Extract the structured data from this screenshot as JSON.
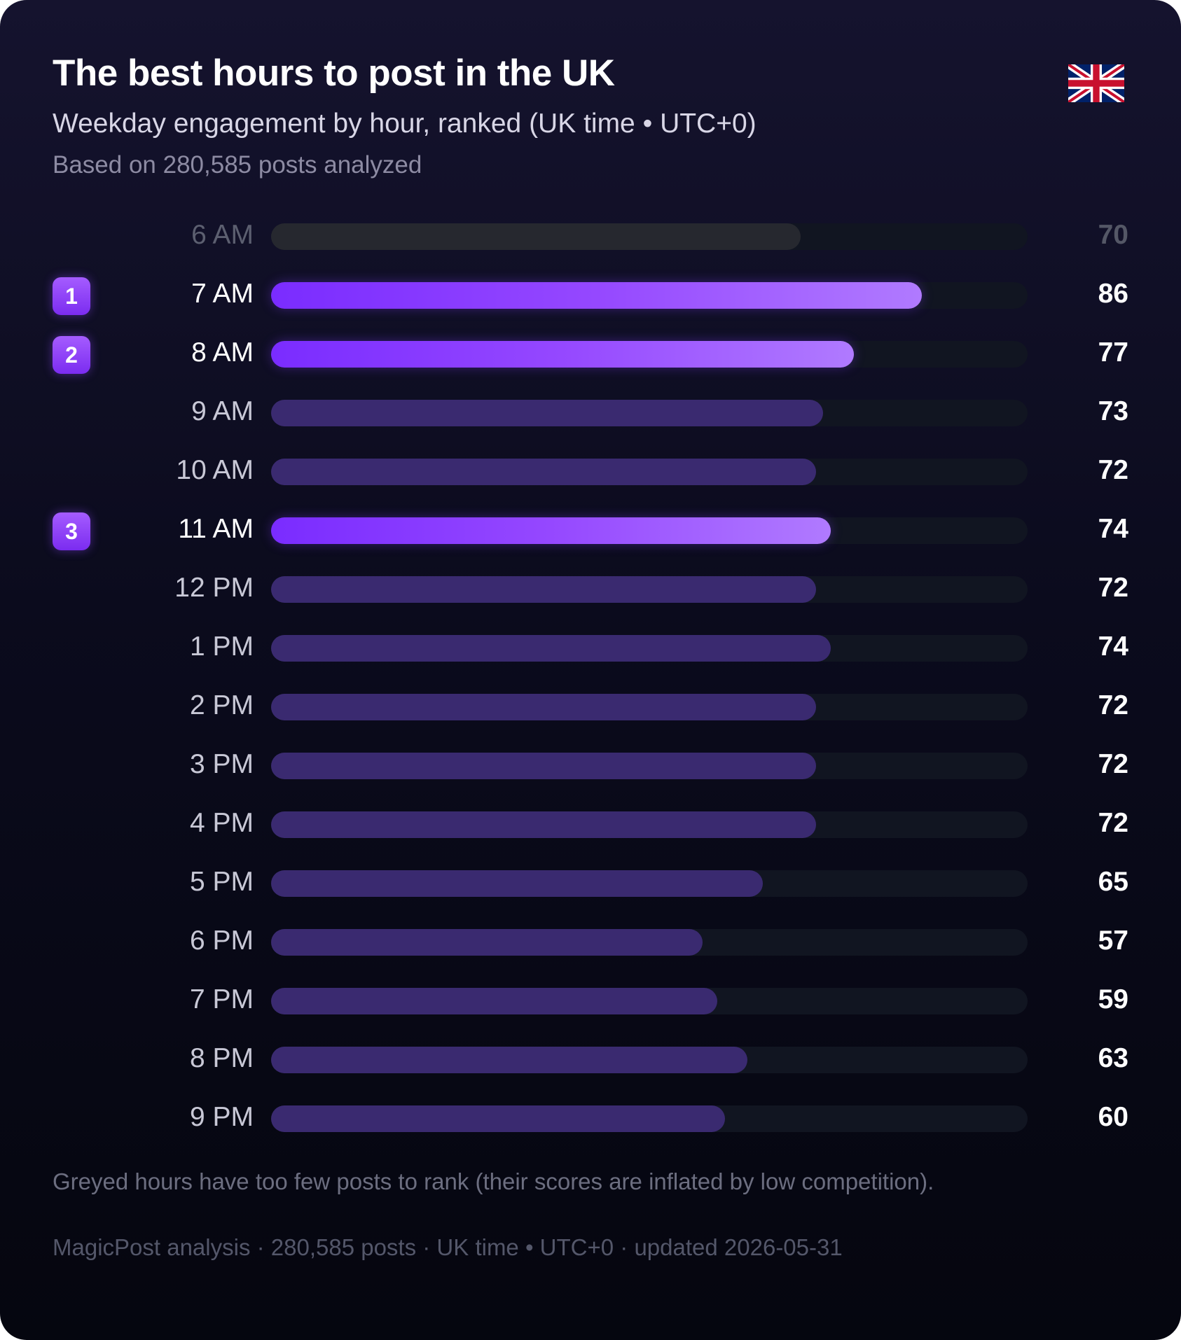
{
  "header": {
    "title": "The best hours to post in the UK",
    "subtitle": "Weekday engagement by hour, ranked (UK time • UTC+0)",
    "sample_note": "Based on 280,585 posts analyzed",
    "flag_icon": "uk-flag-icon"
  },
  "footer": {
    "note": "Greyed hours have too few posts to rank (their scores are inflated by low competition).",
    "credit": "MagicPost analysis · 280,585 posts · UK time • UTC+0 · updated 2026-05-31"
  },
  "colors": {
    "top_bar": "#8a3cff",
    "regular_bar": "#3a2a70",
    "greyed_bar": "#26282f",
    "track": "#111521",
    "badge": "#8f45ff"
  },
  "chart_data": {
    "type": "bar",
    "orientation": "horizontal",
    "categories": [
      "6 AM",
      "7 AM",
      "8 AM",
      "9 AM",
      "10 AM",
      "11 AM",
      "12 PM",
      "1 PM",
      "2 PM",
      "3 PM",
      "4 PM",
      "5 PM",
      "6 PM",
      "7 PM",
      "8 PM",
      "9 PM"
    ],
    "values": [
      70,
      86,
      77,
      73,
      72,
      74,
      72,
      74,
      72,
      72,
      72,
      65,
      57,
      59,
      63,
      60
    ],
    "ranks": [
      "",
      "1",
      "2",
      "",
      "",
      "3",
      "",
      "",
      "",
      "",
      "",
      "",
      "",
      "",
      "",
      ""
    ],
    "greyed": [
      true,
      false,
      false,
      false,
      false,
      false,
      false,
      false,
      false,
      false,
      false,
      false,
      false,
      false,
      false,
      false
    ],
    "xlim": [
      0,
      100
    ],
    "grid": false,
    "legend": "none"
  }
}
